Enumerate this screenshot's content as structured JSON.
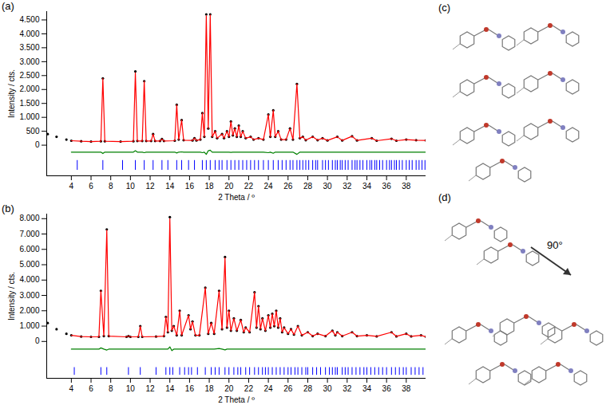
{
  "chart_data": [
    {
      "type": "line",
      "title": "(a)",
      "x_label": "2 Theta / º",
      "y_label": "Intensity / cts.",
      "grid": false,
      "xlim": [
        1.5,
        40
      ],
      "xticks": [
        4,
        6,
        8,
        10,
        12,
        14,
        16,
        18,
        20,
        22,
        24,
        26,
        28,
        30,
        32,
        34,
        36,
        38
      ],
      "ylim": [
        -1100,
        4800
      ],
      "yticks": [
        0,
        500,
        {
          "value": 1000,
          "label": "1.000"
        },
        {
          "value": 1500,
          "label": "1.500"
        },
        {
          "value": 2000,
          "label": "2.000"
        },
        {
          "value": 2500,
          "label": "2.500"
        },
        {
          "value": 3000,
          "label": "3.000"
        },
        {
          "value": 3500,
          "label": "3.500"
        },
        {
          "value": 4000,
          "label": "4.000"
        },
        {
          "value": 4500,
          "label": "4.500"
        }
      ],
      "x": [
        1.6,
        2.5,
        3.5,
        4,
        5,
        6,
        7.0,
        7.2,
        7.4,
        9,
        10.3,
        10.5,
        10.7,
        11.2,
        11.4,
        11.6,
        12.1,
        12.3,
        12.5,
        13.0,
        13.2,
        13.4,
        14.5,
        14.7,
        14.9,
        15.2,
        15.4,
        16.3,
        16.5,
        16.7,
        17.1,
        17.3,
        17.5,
        17.7,
        17.9,
        18.1,
        18.3,
        18.6,
        18.8,
        19.3,
        19.5,
        19.8,
        20.0,
        20.2,
        20.4,
        20.6,
        20.8,
        21.0,
        21.2,
        21.4,
        21.7,
        22.2,
        22.5,
        23.0,
        23.5,
        24.0,
        24.2,
        24.5,
        24.7,
        25.0,
        25.3,
        25.8,
        26.2,
        26.5,
        26.9,
        27.2,
        27.5,
        27.8,
        28.5,
        29.0,
        29.5,
        30.0,
        31.0,
        31.5,
        32.5,
        33.0,
        34.5,
        35.0,
        36.5,
        37.0,
        38.0,
        39.0,
        40.0
      ],
      "series": [
        {
          "color": "#000000",
          "marker": "circle",
          "values": [
            400,
            300,
            200,
            160,
            140,
            130,
            140,
            2400,
            140,
            130,
            140,
            2650,
            150,
            150,
            2300,
            150,
            150,
            400,
            150,
            150,
            220,
            150,
            160,
            1450,
            200,
            900,
            180,
            170,
            250,
            170,
            200,
            1150,
            300,
            4700,
            600,
            4700,
            300,
            500,
            250,
            400,
            250,
            500,
            300,
            850,
            350,
            600,
            300,
            700,
            300,
            500,
            250,
            300,
            200,
            250,
            200,
            1100,
            300,
            1250,
            300,
            500,
            200,
            200,
            600,
            200,
            2200,
            250,
            300,
            180,
            300,
            180,
            250,
            170,
            300,
            170,
            320,
            170,
            250,
            160,
            230,
            160,
            200,
            180,
            170
          ]
        },
        {
          "color": "#ff0000",
          "line_style": "solid",
          "values": [
            null,
            null,
            null,
            160,
            140,
            130,
            140,
            2400,
            140,
            130,
            140,
            2600,
            150,
            150,
            2300,
            150,
            150,
            400,
            150,
            150,
            220,
            150,
            160,
            1450,
            200,
            900,
            180,
            170,
            250,
            170,
            200,
            1150,
            300,
            4650,
            600,
            4680,
            300,
            500,
            250,
            400,
            250,
            500,
            300,
            850,
            350,
            600,
            300,
            700,
            300,
            500,
            250,
            300,
            200,
            250,
            200,
            1100,
            300,
            1250,
            300,
            500,
            200,
            200,
            600,
            200,
            2200,
            250,
            300,
            180,
            300,
            180,
            250,
            170,
            300,
            170,
            320,
            170,
            250,
            160,
            230,
            160,
            200,
            180,
            170
          ]
        },
        {
          "color": "#008000",
          "line_style": "solid",
          "values": [
            null,
            null,
            null,
            -250,
            -250,
            -250,
            -250,
            -300,
            -250,
            -250,
            -250,
            -200,
            -250,
            -250,
            -270,
            -250,
            -250,
            -250,
            -250,
            -250,
            -250,
            -250,
            -250,
            -280,
            -250,
            -240,
            -250,
            -250,
            -250,
            -250,
            -250,
            -270,
            -250,
            -330,
            -200,
            -180,
            -250,
            -250,
            -250,
            -250,
            -250,
            -250,
            -250,
            -260,
            -250,
            -250,
            -250,
            -250,
            -250,
            -250,
            -250,
            -250,
            -250,
            -250,
            -250,
            -270,
            -250,
            -290,
            -250,
            -250,
            -250,
            -250,
            -250,
            -250,
            -330,
            -250,
            -250,
            -250,
            -250,
            -250,
            -250,
            -250,
            -250,
            -250,
            -250,
            -250,
            -250,
            -250,
            -250,
            -250,
            -250,
            -250,
            -250
          ]
        }
      ],
      "reflections": {
        "color": "#0000ff",
        "ymin": -900,
        "ymax": -550,
        "x": [
          4.6,
          7.2,
          9.2,
          10.5,
          11.4,
          12.3,
          13.2,
          13.8,
          14.7,
          15.2,
          15.9,
          16.5,
          17.3,
          17.7,
          18.1,
          18.6,
          19.0,
          19.3,
          19.8,
          20.2,
          20.6,
          21.0,
          21.4,
          21.8,
          22.2,
          22.6,
          23.0,
          23.5,
          24.0,
          24.5,
          25.0,
          25.4,
          25.8,
          26.2,
          26.5,
          26.9,
          27.2,
          27.5,
          27.8,
          28.1,
          28.5,
          28.8,
          29.0,
          29.5,
          29.8,
          30.1,
          30.5,
          30.8,
          31.0,
          31.3,
          31.5,
          31.8,
          32.1,
          32.5,
          32.8,
          33.0,
          33.3,
          33.6,
          34.0,
          34.3,
          34.5,
          34.8,
          35.0,
          35.3,
          35.6,
          36.0,
          36.3,
          36.5,
          36.8,
          37.0,
          37.3,
          37.6,
          38.0,
          38.3,
          38.6,
          39.0,
          39.3,
          39.6,
          39.9
        ]
      }
    },
    {
      "type": "line",
      "title": "(b)",
      "x_label": "2 Theta / º",
      "y_label": "Intensity / cts.",
      "grid": false,
      "xlim": [
        1.5,
        40
      ],
      "xticks": [
        4,
        6,
        8,
        10,
        12,
        14,
        16,
        18,
        20,
        22,
        24,
        26,
        28,
        30,
        32,
        34,
        36,
        38
      ],
      "ylim": [
        -2400,
        8300
      ],
      "yticks": [
        0,
        {
          "value": 1000,
          "label": "1.000"
        },
        {
          "value": 2000,
          "label": "2.000"
        },
        {
          "value": 3000,
          "label": "3.000"
        },
        {
          "value": 4000,
          "label": "4.000"
        },
        {
          "value": 5000,
          "label": "5.000"
        },
        {
          "value": 6000,
          "label": "6.000"
        },
        {
          "value": 7000,
          "label": "7.000"
        },
        {
          "value": 8000,
          "label": "8.000"
        }
      ],
      "x": [
        1.6,
        2.5,
        3.5,
        4,
        5,
        6,
        6.8,
        7.0,
        7.3,
        7.6,
        7.8,
        9.6,
        9.8,
        10.0,
        10.8,
        11.0,
        11.2,
        12.6,
        13.4,
        13.6,
        13.8,
        14.0,
        14.2,
        14.4,
        14.7,
        15.0,
        15.2,
        15.9,
        16.1,
        16.3,
        16.6,
        17.0,
        17.6,
        17.9,
        18.2,
        18.5,
        19.0,
        19.3,
        19.6,
        19.8,
        20.0,
        20.2,
        20.5,
        20.8,
        21.2,
        21.5,
        21.7,
        22.1,
        22.6,
        22.8,
        23.0,
        23.2,
        23.4,
        23.7,
        24.0,
        24.2,
        24.4,
        24.6,
        24.8,
        25.0,
        25.2,
        25.4,
        25.6,
        26.0,
        26.3,
        26.6,
        27.0,
        27.4,
        28.0,
        28.5,
        29.0,
        29.8,
        30.5,
        30.8,
        31.0,
        31.5,
        32.5,
        33.0,
        34.0,
        35.0,
        36.5,
        37.0,
        38.0,
        38.5,
        39.5,
        40.0
      ],
      "series": [
        {
          "color": "#000000",
          "marker": "circle",
          "values": [
            1200,
            800,
            500,
            400,
            320,
            300,
            300,
            3300,
            350,
            7300,
            350,
            300,
            350,
            300,
            300,
            1000,
            300,
            320,
            350,
            1600,
            600,
            8100,
            700,
            1000,
            400,
            2000,
            400,
            1700,
            800,
            1300,
            400,
            400,
            3500,
            500,
            1200,
            500,
            3300,
            800,
            5500,
            900,
            2000,
            700,
            1500,
            700,
            1400,
            600,
            900,
            600,
            3200,
            900,
            2300,
            800,
            1500,
            700,
            1700,
            900,
            1800,
            1000,
            2000,
            900,
            1500,
            600,
            900,
            500,
            800,
            450,
            1000,
            400,
            600,
            350,
            500,
            350,
            700,
            400,
            600,
            350,
            600,
            350,
            400,
            330,
            600,
            330,
            500,
            330,
            400,
            300
          ]
        },
        {
          "color": "#ff0000",
          "line_style": "solid",
          "values": [
            null,
            null,
            null,
            400,
            320,
            300,
            300,
            3300,
            350,
            7250,
            350,
            300,
            350,
            300,
            300,
            1000,
            300,
            320,
            350,
            1600,
            600,
            8000,
            700,
            1000,
            400,
            2000,
            400,
            1700,
            800,
            1300,
            400,
            400,
            3500,
            500,
            1200,
            500,
            3300,
            800,
            5450,
            900,
            2000,
            700,
            1500,
            700,
            1400,
            600,
            900,
            600,
            3200,
            900,
            2300,
            800,
            1500,
            700,
            1700,
            900,
            1800,
            1000,
            2000,
            900,
            1500,
            600,
            900,
            500,
            800,
            450,
            1000,
            400,
            600,
            350,
            500,
            350,
            700,
            400,
            600,
            350,
            600,
            350,
            400,
            330,
            600,
            330,
            500,
            330,
            400,
            300
          ]
        },
        {
          "color": "#008000",
          "line_style": "solid",
          "values": [
            null,
            null,
            null,
            -500,
            -500,
            -500,
            -500,
            -420,
            -500,
            -560,
            -500,
            -500,
            -500,
            -500,
            -500,
            -500,
            -500,
            -500,
            -500,
            -500,
            -500,
            -350,
            -600,
            -500,
            -500,
            -500,
            -500,
            -500,
            -500,
            -500,
            -500,
            -500,
            -500,
            -500,
            -500,
            -500,
            -460,
            -500,
            -550,
            -500,
            -500,
            -500,
            -500,
            -500,
            -500,
            -500,
            -500,
            -500,
            -500,
            -500,
            -500,
            -500,
            -500,
            -500,
            -500,
            -500,
            -500,
            -500,
            -500,
            -500,
            -500,
            -500,
            -500,
            -500,
            -500,
            -500,
            -500,
            -500,
            -500,
            -500,
            -500,
            -500,
            -500,
            -500,
            -500,
            -500,
            -500,
            -500,
            -500,
            -500,
            -500,
            -500,
            -500,
            -500,
            -500,
            -500
          ]
        }
      ],
      "reflections": {
        "color": "#0000ff",
        "ymin": -2200,
        "ymax": -1700,
        "x": [
          4.3,
          7.0,
          7.6,
          9.8,
          11.0,
          12.6,
          13.6,
          14.0,
          14.3,
          15.0,
          15.5,
          15.9,
          16.2,
          16.8,
          17.6,
          18.2,
          18.6,
          19.0,
          19.6,
          20.0,
          20.5,
          20.9,
          21.2,
          21.7,
          22.1,
          22.6,
          23.0,
          23.4,
          23.7,
          24.0,
          24.4,
          24.8,
          25.2,
          25.6,
          26.0,
          26.3,
          26.7,
          27.0,
          27.4,
          27.8,
          28.0,
          28.5,
          28.9,
          29.3,
          29.8,
          30.2,
          30.5,
          30.8,
          31.0,
          31.5,
          31.8,
          32.1,
          32.5,
          32.9,
          33.3,
          33.7,
          34.0,
          34.4,
          34.8,
          35.2,
          35.6,
          36.0,
          36.5,
          36.9,
          37.3,
          37.7,
          38.0,
          38.5,
          38.9,
          39.3,
          39.7
        ]
      }
    }
  ],
  "panels": [
    {
      "label": "(c)"
    },
    {
      "label": "(d)",
      "annotation": "90°"
    }
  ]
}
